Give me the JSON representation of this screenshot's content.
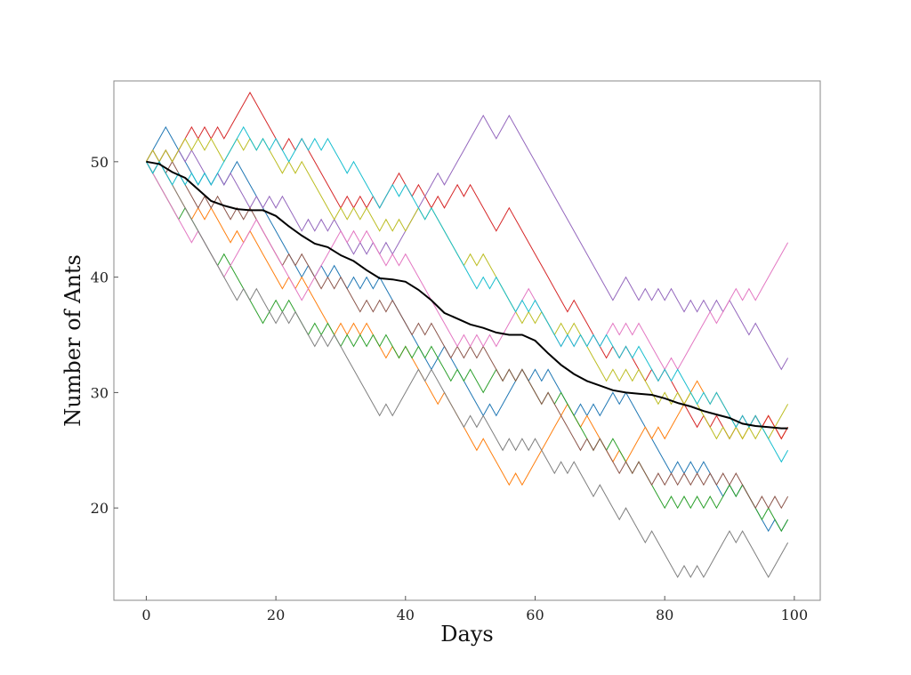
{
  "chart_data": {
    "type": "line",
    "title": "",
    "xlabel": "Days",
    "ylabel": "Number of Ants",
    "xlim": [
      -5,
      104
    ],
    "ylim": [
      12,
      57
    ],
    "xticks": [
      0,
      20,
      40,
      60,
      80,
      100
    ],
    "yticks": [
      20,
      30,
      40,
      50
    ],
    "xtick_labels": [
      "0",
      "20",
      "40",
      "60",
      "80",
      "100"
    ],
    "ytick_labels": [
      "20",
      "30",
      "40",
      "50"
    ],
    "grid": false,
    "legend": "none",
    "walk_colors": [
      "#1f77b4",
      "#ff7f0e",
      "#2ca02c",
      "#d62728",
      "#9467bd",
      "#8c564b",
      "#e377c2",
      "#7f7f7f",
      "#bcbd22",
      "#17becf"
    ],
    "series": [
      {
        "keypoints": [
          [
            0,
            50
          ],
          [
            3,
            52
          ],
          [
            8,
            46
          ],
          [
            14,
            50
          ],
          [
            22,
            42
          ],
          [
            30,
            41
          ],
          [
            38,
            38
          ],
          [
            45,
            32
          ],
          [
            52,
            28
          ],
          [
            58,
            32
          ],
          [
            66,
            28
          ],
          [
            72,
            30
          ],
          [
            80,
            25
          ],
          [
            88,
            22
          ],
          [
            94,
            20
          ],
          [
            99,
            19
          ]
        ]
      },
      {
        "keypoints": [
          [
            0,
            50
          ],
          [
            6,
            46
          ],
          [
            12,
            44
          ],
          [
            20,
            40
          ],
          [
            28,
            36
          ],
          [
            36,
            34
          ],
          [
            44,
            30
          ],
          [
            50,
            26
          ],
          [
            56,
            22
          ],
          [
            60,
            24
          ],
          [
            66,
            29
          ],
          [
            72,
            24
          ],
          [
            78,
            27
          ],
          [
            86,
            31
          ],
          [
            92,
            27
          ],
          [
            99,
            26
          ]
        ]
      },
      {
        "keypoints": [
          [
            0,
            50
          ],
          [
            4,
            47
          ],
          [
            10,
            43
          ],
          [
            18,
            37
          ],
          [
            24,
            36
          ],
          [
            30,
            34
          ],
          [
            38,
            35
          ],
          [
            46,
            32
          ],
          [
            52,
            30
          ],
          [
            60,
            30
          ],
          [
            68,
            27
          ],
          [
            74,
            24
          ],
          [
            80,
            21
          ],
          [
            88,
            21
          ],
          [
            94,
            20
          ],
          [
            99,
            18
          ]
        ]
      },
      {
        "keypoints": [
          [
            0,
            50
          ],
          [
            7,
            53
          ],
          [
            15,
            55
          ],
          [
            20,
            52
          ],
          [
            30,
            47
          ],
          [
            40,
            49
          ],
          [
            44,
            46
          ],
          [
            48,
            48
          ],
          [
            54,
            45
          ],
          [
            56,
            46
          ],
          [
            64,
            38
          ],
          [
            70,
            35
          ],
          [
            76,
            32
          ],
          [
            84,
            28
          ],
          [
            90,
            26
          ],
          [
            99,
            26
          ]
        ]
      },
      {
        "keypoints": [
          [
            0,
            50
          ],
          [
            8,
            51
          ],
          [
            14,
            49
          ],
          [
            22,
            47
          ],
          [
            30,
            45
          ],
          [
            38,
            43
          ],
          [
            44,
            48
          ],
          [
            46,
            49
          ],
          [
            52,
            54
          ],
          [
            54,
            53
          ],
          [
            56,
            54
          ],
          [
            72,
            39
          ],
          [
            76,
            38
          ],
          [
            82,
            39
          ],
          [
            92,
            36
          ],
          [
            96,
            34
          ],
          [
            99,
            33
          ]
        ]
      },
      {
        "keypoints": [
          [
            0,
            50
          ],
          [
            6,
            48
          ],
          [
            12,
            47
          ],
          [
            20,
            42
          ],
          [
            26,
            40
          ],
          [
            32,
            38
          ],
          [
            40,
            36
          ],
          [
            46,
            34
          ],
          [
            54,
            32
          ],
          [
            60,
            30
          ],
          [
            66,
            27
          ],
          [
            72,
            24
          ],
          [
            78,
            22
          ],
          [
            86,
            23
          ],
          [
            92,
            23
          ],
          [
            99,
            21
          ]
        ]
      },
      {
        "keypoints": [
          [
            0,
            50
          ],
          [
            6,
            45
          ],
          [
            10,
            42
          ],
          [
            12,
            40
          ],
          [
            18,
            45
          ],
          [
            24,
            39
          ],
          [
            30,
            44
          ],
          [
            36,
            42
          ],
          [
            42,
            40
          ],
          [
            48,
            35
          ],
          [
            56,
            36
          ],
          [
            60,
            39
          ],
          [
            64,
            35
          ],
          [
            72,
            36
          ],
          [
            80,
            33
          ],
          [
            88,
            37
          ],
          [
            92,
            39
          ],
          [
            99,
            43
          ]
        ]
      },
      {
        "keypoints": [
          [
            0,
            50
          ],
          [
            6,
            46
          ],
          [
            12,
            41
          ],
          [
            18,
            39
          ],
          [
            24,
            37
          ],
          [
            30,
            35
          ],
          [
            36,
            28
          ],
          [
            42,
            32
          ],
          [
            48,
            29
          ],
          [
            54,
            26
          ],
          [
            62,
            24
          ],
          [
            68,
            22
          ],
          [
            72,
            20
          ],
          [
            76,
            18
          ],
          [
            80,
            16
          ],
          [
            86,
            15
          ],
          [
            90,
            18
          ],
          [
            96,
            14
          ],
          [
            99,
            17
          ]
        ]
      },
      {
        "keypoints": [
          [
            0,
            50
          ],
          [
            6,
            52
          ],
          [
            12,
            50
          ],
          [
            20,
            50
          ],
          [
            28,
            47
          ],
          [
            36,
            44
          ],
          [
            42,
            46
          ],
          [
            48,
            42
          ],
          [
            56,
            39
          ],
          [
            62,
            37
          ],
          [
            70,
            33
          ],
          [
            78,
            30
          ],
          [
            86,
            28
          ],
          [
            92,
            27
          ],
          [
            99,
            29
          ]
        ]
      },
      {
        "keypoints": [
          [
            0,
            50
          ],
          [
            4,
            48
          ],
          [
            10,
            49
          ],
          [
            16,
            53
          ],
          [
            22,
            50
          ],
          [
            30,
            50
          ],
          [
            36,
            47
          ],
          [
            42,
            46
          ],
          [
            50,
            40
          ],
          [
            56,
            38
          ],
          [
            64,
            35
          ],
          [
            72,
            35
          ],
          [
            78,
            32
          ],
          [
            84,
            30
          ],
          [
            90,
            28
          ],
          [
            96,
            26
          ],
          [
            99,
            25
          ]
        ]
      }
    ],
    "mean_series": {
      "color": "#000000",
      "x": [
        0,
        2,
        4,
        6,
        8,
        10,
        12,
        14,
        16,
        18,
        20,
        22,
        24,
        26,
        28,
        30,
        32,
        34,
        36,
        38,
        40,
        42,
        44,
        46,
        48,
        50,
        52,
        54,
        56,
        58,
        60,
        62,
        64,
        66,
        68,
        70,
        72,
        74,
        76,
        78,
        80,
        82,
        84,
        86,
        88,
        90,
        92,
        94,
        96,
        98,
        99
      ],
      "values": [
        50,
        49.8,
        49.1,
        48.6,
        47.6,
        46.6,
        46.2,
        45.9,
        45.8,
        45.8,
        45.3,
        44.4,
        43.6,
        42.9,
        42.6,
        41.9,
        41.4,
        40.6,
        39.9,
        39.8,
        39.6,
        38.9,
        38,
        36.9,
        36.4,
        35.9,
        35.6,
        35.2,
        35,
        35,
        34.5,
        33.4,
        32.4,
        31.6,
        31,
        30.6,
        30.2,
        30,
        29.9,
        29.8,
        29.5,
        29.1,
        28.8,
        28.4,
        28.1,
        27.8,
        27.3,
        27.1,
        27,
        26.9,
        26.9
      ]
    }
  }
}
